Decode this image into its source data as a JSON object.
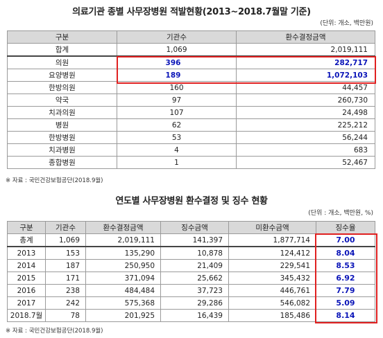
{
  "table1": {
    "title": "의료기관 종별 사무장병원 적발현황(2013~2018.7월말 기준)",
    "unit": "(단위: 개소, 백만원)",
    "headers": [
      "구분",
      "기관수",
      "환수결정금액"
    ],
    "rows": [
      {
        "label": "합계",
        "count": "1,069",
        "amount": "2,019,111"
      },
      {
        "label": "의원",
        "count": "396",
        "amount": "282,717"
      },
      {
        "label": "요양병원",
        "count": "189",
        "amount": "1,072,103"
      },
      {
        "label": "한방의원",
        "count": "160",
        "amount": "44,457"
      },
      {
        "label": "약국",
        "count": "97",
        "amount": "260,730"
      },
      {
        "label": "치과의원",
        "count": "107",
        "amount": "24,498"
      },
      {
        "label": "병원",
        "count": "62",
        "amount": "225,212"
      },
      {
        "label": "한방병원",
        "count": "53",
        "amount": "56,244"
      },
      {
        "label": "치과병원",
        "count": "4",
        "amount": "683"
      },
      {
        "label": "종합병원",
        "count": "1",
        "amount": "52,467"
      }
    ],
    "source": "※ 자료 : 국민건강보험공단(2018.9월)"
  },
  "table2": {
    "title": "연도별 사무장병원 환수결정 및 징수 현황",
    "unit": "(단위 : 개소, 백만원, %)",
    "headers": [
      "구분",
      "기관수",
      "환수결정금액",
      "징수금액",
      "미환수금액",
      "징수율"
    ],
    "rows": [
      {
        "label": "총계",
        "count": "1,069",
        "decided": "2,019,111",
        "collected": "141,397",
        "unrecovered": "1,877,714",
        "rate": "7.00"
      },
      {
        "label": "2013",
        "count": "153",
        "decided": "135,290",
        "collected": "10,878",
        "unrecovered": "124,412",
        "rate": "8.04"
      },
      {
        "label": "2014",
        "count": "187",
        "decided": "250,950",
        "collected": "21,409",
        "unrecovered": "229,541",
        "rate": "8.53"
      },
      {
        "label": "2015",
        "count": "171",
        "decided": "371,094",
        "collected": "25,662",
        "unrecovered": "345,432",
        "rate": "6.92"
      },
      {
        "label": "2016",
        "count": "238",
        "decided": "484,484",
        "collected": "37,723",
        "unrecovered": "446,761",
        "rate": "7.79"
      },
      {
        "label": "2017",
        "count": "242",
        "decided": "575,368",
        "collected": "29,286",
        "unrecovered": "546,082",
        "rate": "5.09"
      },
      {
        "label": "2018.7월",
        "count": "78",
        "decided": "201,925",
        "collected": "16,439",
        "unrecovered": "185,486",
        "rate": "8.14"
      }
    ],
    "source": "※ 자료 : 국민건강보험공단(2018.9월)"
  },
  "colors": {
    "highlight_border": "#e02020",
    "highlight_text": "#0a14b8",
    "header_bg": "#d9d9d9"
  }
}
